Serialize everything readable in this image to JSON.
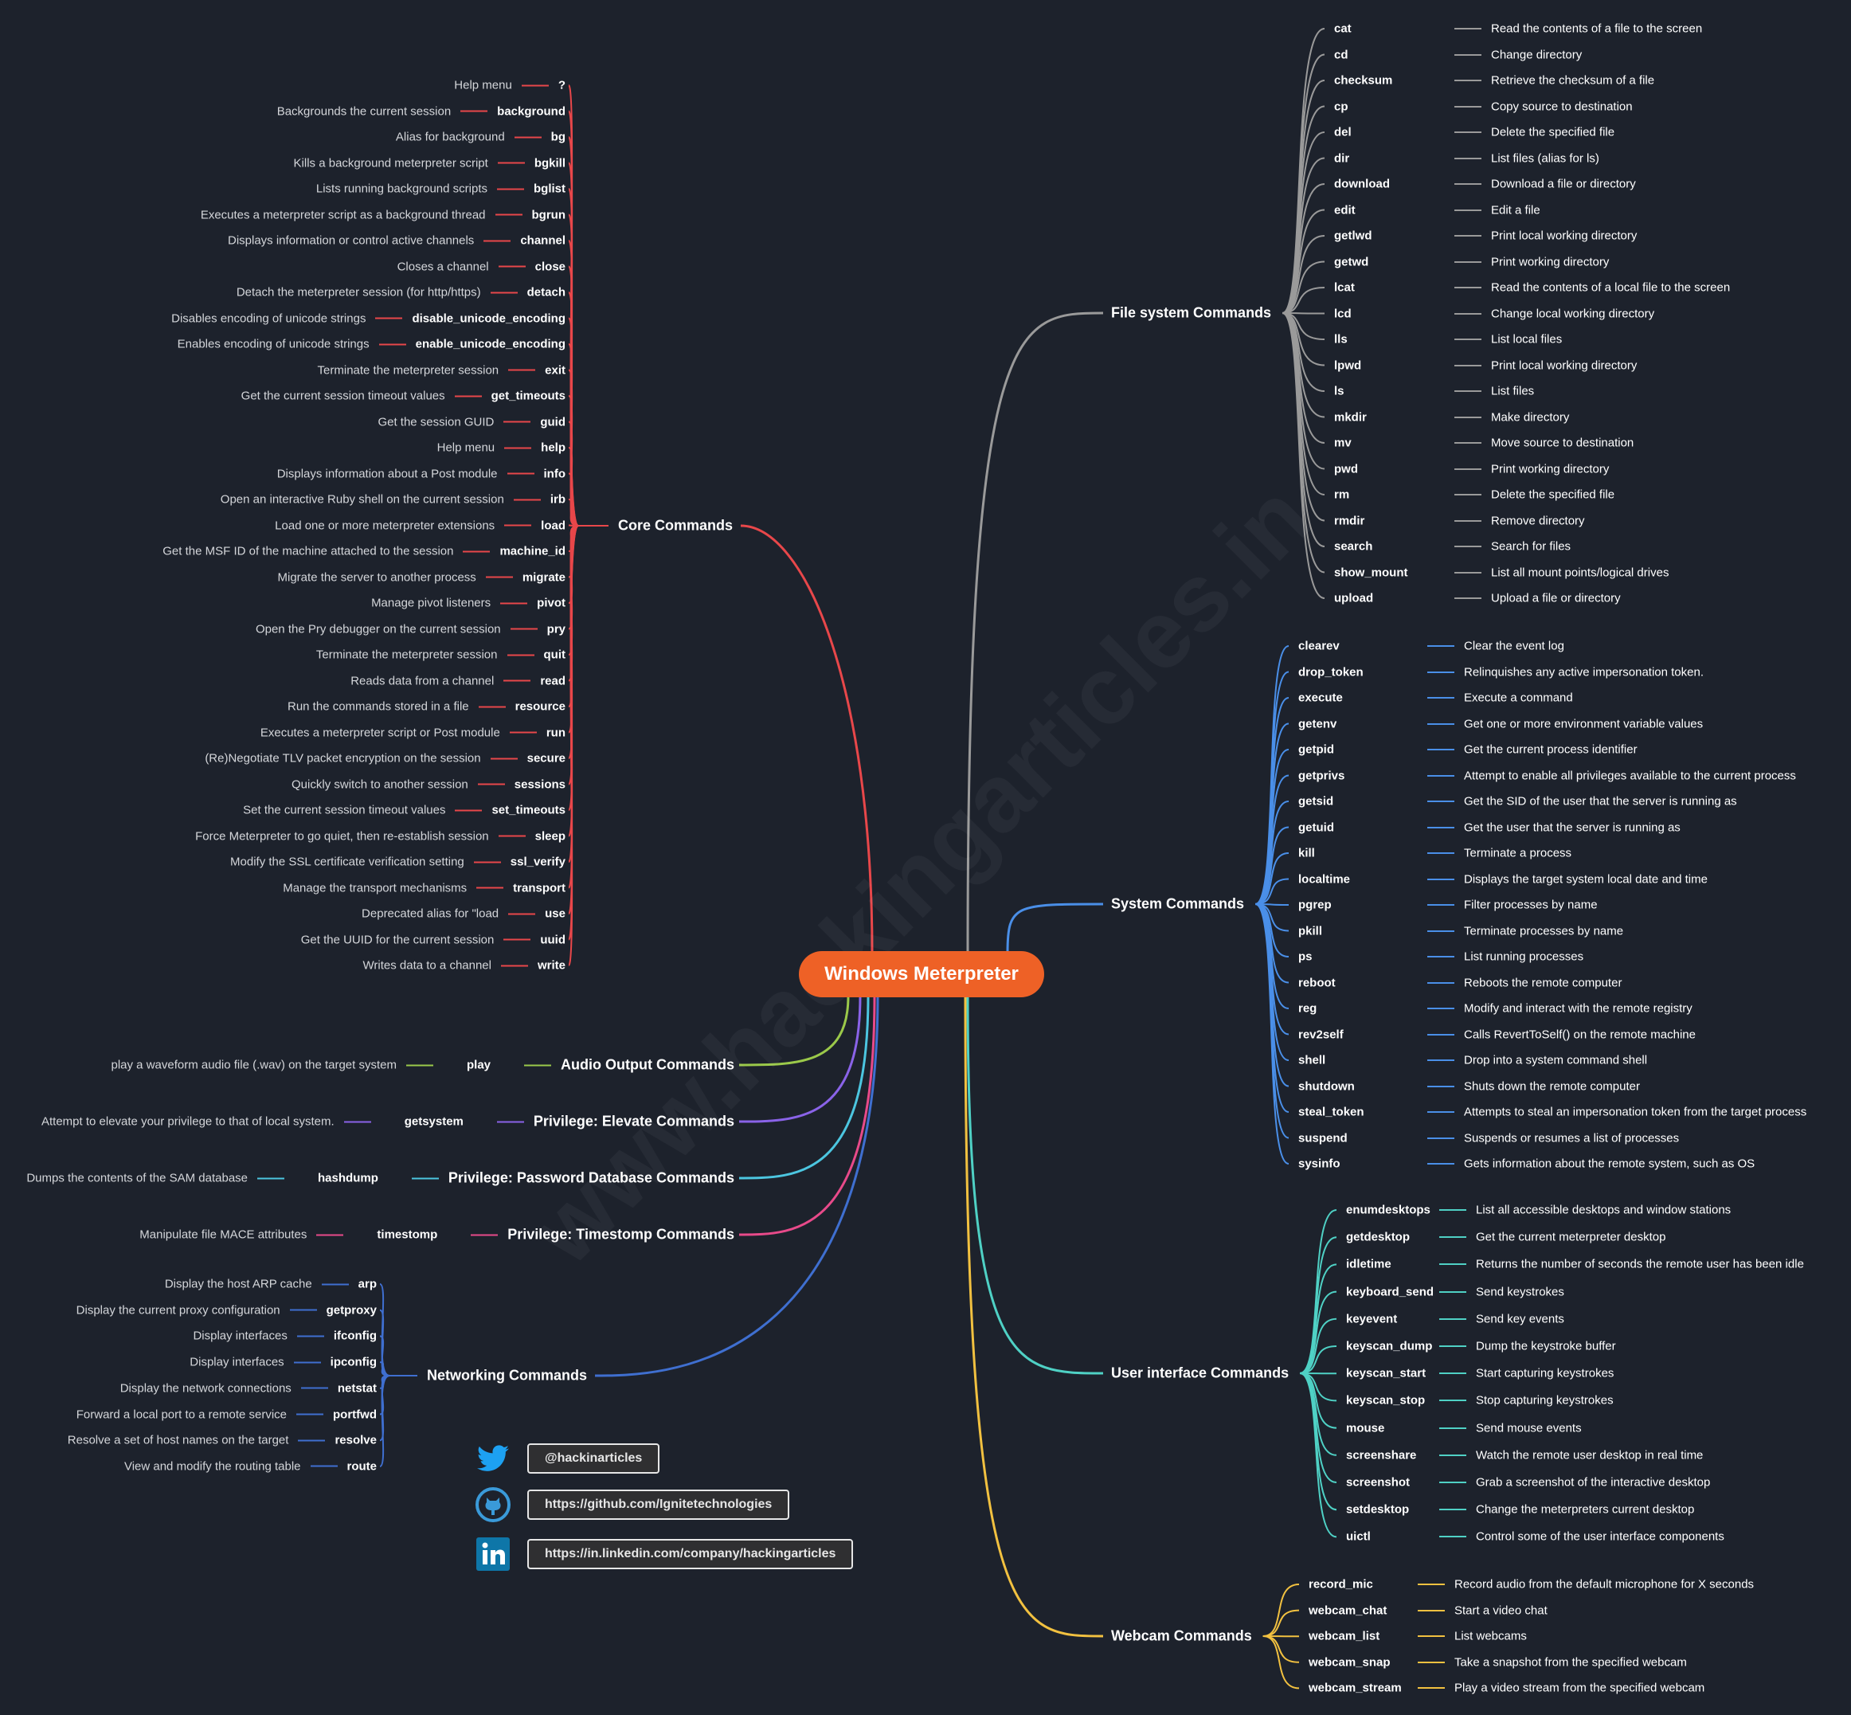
{
  "title": "Windows Meterpreter",
  "watermark": "www.hackingarticles.in",
  "center_color": "#ee6126",
  "branches": [
    {
      "label": "Core Commands",
      "color": "#e8474a",
      "children": [
        {
          "cmd": "?",
          "desc": "Help menu"
        },
        {
          "cmd": "background",
          "desc": "Backgrounds the current session"
        },
        {
          "cmd": "bg",
          "desc": "Alias for background"
        },
        {
          "cmd": "bgkill",
          "desc": "Kills a background meterpreter script"
        },
        {
          "cmd": "bglist",
          "desc": "Lists running background scripts"
        },
        {
          "cmd": "bgrun",
          "desc": "Executes a meterpreter script as a background thread"
        },
        {
          "cmd": "channel",
          "desc": "Displays information or control active channels"
        },
        {
          "cmd": "close",
          "desc": "Closes a channel"
        },
        {
          "cmd": "detach",
          "desc": "Detach the meterpreter session (for http/https)"
        },
        {
          "cmd": "disable_unicode_encoding",
          "desc": "Disables encoding of unicode strings"
        },
        {
          "cmd": "enable_unicode_encoding",
          "desc": "Enables encoding of unicode strings"
        },
        {
          "cmd": "exit",
          "desc": "Terminate the meterpreter session"
        },
        {
          "cmd": "get_timeouts",
          "desc": "Get the current session timeout values"
        },
        {
          "cmd": "guid",
          "desc": "Get the session GUID"
        },
        {
          "cmd": "help",
          "desc": "Help menu"
        },
        {
          "cmd": "info",
          "desc": "Displays information about a Post module"
        },
        {
          "cmd": "irb",
          "desc": "Open an interactive Ruby shell on the current session"
        },
        {
          "cmd": "load",
          "desc": "Load one or more meterpreter extensions"
        },
        {
          "cmd": "machine_id",
          "desc": "Get the MSF ID of the machine attached to the session"
        },
        {
          "cmd": "migrate",
          "desc": "Migrate the server to another process"
        },
        {
          "cmd": "pivot",
          "desc": "Manage pivot listeners"
        },
        {
          "cmd": "pry",
          "desc": "Open the Pry debugger on the current session"
        },
        {
          "cmd": "quit",
          "desc": "Terminate the meterpreter session"
        },
        {
          "cmd": "read",
          "desc": "Reads data from a channel"
        },
        {
          "cmd": "resource",
          "desc": "Run the commands stored in a file"
        },
        {
          "cmd": "run",
          "desc": "Executes a meterpreter script or Post module"
        },
        {
          "cmd": "secure",
          "desc": "(Re)Negotiate TLV packet encryption on the session"
        },
        {
          "cmd": "sessions",
          "desc": "Quickly switch to another session"
        },
        {
          "cmd": "set_timeouts",
          "desc": "Set the current session timeout values"
        },
        {
          "cmd": "sleep",
          "desc": "Force Meterpreter to go quiet, then re-establish session"
        },
        {
          "cmd": "ssl_verify",
          "desc": "Modify the SSL certificate verification setting"
        },
        {
          "cmd": "transport",
          "desc": "Manage the transport mechanisms"
        },
        {
          "cmd": "use",
          "desc": "Deprecated alias for \"load"
        },
        {
          "cmd": "uuid",
          "desc": "Get the UUID for the current session"
        },
        {
          "cmd": "write",
          "desc": "Writes data to a channel"
        }
      ]
    },
    {
      "label": "File system Commands",
      "color": "#9a9a9a",
      "children": [
        {
          "cmd": "cat",
          "desc": "Read the contents of a file to the screen"
        },
        {
          "cmd": "cd",
          "desc": "Change directory"
        },
        {
          "cmd": "checksum",
          "desc": "Retrieve the checksum of a file"
        },
        {
          "cmd": "cp",
          "desc": "Copy source to destination"
        },
        {
          "cmd": "del",
          "desc": "Delete the specified file"
        },
        {
          "cmd": "dir",
          "desc": "List files (alias for ls)"
        },
        {
          "cmd": "download",
          "desc": "Download a file or directory"
        },
        {
          "cmd": "edit",
          "desc": "Edit a file"
        },
        {
          "cmd": "getlwd",
          "desc": "Print local working directory"
        },
        {
          "cmd": "getwd",
          "desc": "Print working directory"
        },
        {
          "cmd": "lcat",
          "desc": "Read the contents of a local file to the screen"
        },
        {
          "cmd": "lcd",
          "desc": "Change local working directory"
        },
        {
          "cmd": "lls",
          "desc": "List local files"
        },
        {
          "cmd": "lpwd",
          "desc": "Print local working directory"
        },
        {
          "cmd": "ls",
          "desc": "List files"
        },
        {
          "cmd": "mkdir",
          "desc": "Make directory"
        },
        {
          "cmd": "mv",
          "desc": "Move source to destination"
        },
        {
          "cmd": "pwd",
          "desc": "Print working directory"
        },
        {
          "cmd": "rm",
          "desc": "Delete the specified file"
        },
        {
          "cmd": "rmdir",
          "desc": "Remove directory"
        },
        {
          "cmd": "search",
          "desc": "Search for files"
        },
        {
          "cmd": "show_mount",
          "desc": "List all mount points/logical drives"
        },
        {
          "cmd": "upload",
          "desc": "Upload a file or directory"
        }
      ]
    },
    {
      "label": "System Commands",
      "color": "#4a8fe8",
      "children": [
        {
          "cmd": "clearev",
          "desc": "Clear the event log"
        },
        {
          "cmd": "drop_token",
          "desc": "Relinquishes any active impersonation token."
        },
        {
          "cmd": "execute",
          "desc": "Execute a command"
        },
        {
          "cmd": "getenv",
          "desc": "Get one or more environment variable values"
        },
        {
          "cmd": "getpid",
          "desc": "Get the current process identifier"
        },
        {
          "cmd": "getprivs",
          "desc": "Attempt to enable all privileges available to the current process"
        },
        {
          "cmd": "getsid",
          "desc": "Get the SID of the user that the server is running as"
        },
        {
          "cmd": "getuid",
          "desc": "Get the user that the server is running as"
        },
        {
          "cmd": "kill",
          "desc": "Terminate a process"
        },
        {
          "cmd": "localtime",
          "desc": "Displays the target system local date and time"
        },
        {
          "cmd": "pgrep",
          "desc": "Filter processes by name"
        },
        {
          "cmd": "pkill",
          "desc": "Terminate processes by name"
        },
        {
          "cmd": "ps",
          "desc": "List running processes"
        },
        {
          "cmd": "reboot",
          "desc": "Reboots the remote computer"
        },
        {
          "cmd": "reg",
          "desc": "Modify and interact with the remote registry"
        },
        {
          "cmd": "rev2self",
          "desc": "Calls RevertToSelf() on the remote machine"
        },
        {
          "cmd": "shell",
          "desc": "Drop into a system command shell"
        },
        {
          "cmd": "shutdown",
          "desc": "Shuts down the remote computer"
        },
        {
          "cmd": "steal_token",
          "desc": "Attempts to steal an impersonation token from the target process"
        },
        {
          "cmd": "suspend",
          "desc": "Suspends or resumes a list of processes"
        },
        {
          "cmd": "sysinfo",
          "desc": "Gets information about the remote system, such as OS"
        }
      ]
    },
    {
      "label": "User interface Commands",
      "color": "#4fd1c5",
      "children": [
        {
          "cmd": "enumdesktops",
          "desc": "List all accessible desktops and window stations"
        },
        {
          "cmd": "getdesktop",
          "desc": "Get the current meterpreter desktop"
        },
        {
          "cmd": "idletime",
          "desc": "Returns the number of seconds the remote user has been idle"
        },
        {
          "cmd": "keyboard_send",
          "desc": "Send keystrokes"
        },
        {
          "cmd": "keyevent",
          "desc": "Send key events"
        },
        {
          "cmd": "keyscan_dump",
          "desc": "Dump the keystroke buffer"
        },
        {
          "cmd": "keyscan_start",
          "desc": "Start capturing keystrokes"
        },
        {
          "cmd": "keyscan_stop",
          "desc": "Stop capturing keystrokes"
        },
        {
          "cmd": "mouse",
          "desc": "Send mouse events"
        },
        {
          "cmd": "screenshare",
          "desc": "Watch the remote user desktop in real time"
        },
        {
          "cmd": "screenshot",
          "desc": "Grab a screenshot of the interactive desktop"
        },
        {
          "cmd": "setdesktop",
          "desc": "Change the meterpreters current desktop"
        },
        {
          "cmd": "uictl",
          "desc": "Control some of the user interface components"
        }
      ]
    },
    {
      "label": "Webcam Commands",
      "color": "#f2c140",
      "children": [
        {
          "cmd": "record_mic",
          "desc": "Record audio from the default microphone for X seconds"
        },
        {
          "cmd": "webcam_chat",
          "desc": "Start a video chat"
        },
        {
          "cmd": "webcam_list",
          "desc": "List webcams"
        },
        {
          "cmd": "webcam_snap",
          "desc": "Take a snapshot from the specified webcam"
        },
        {
          "cmd": "webcam_stream",
          "desc": "Play a video stream from the specified webcam"
        }
      ]
    },
    {
      "label": "Audio Output Commands",
      "color": "#9bc94a",
      "children": [
        {
          "cmd": "play",
          "desc": "play a waveform audio file (.wav) on the target system"
        }
      ]
    },
    {
      "label": "Privilege: Elevate Commands",
      "color": "#8a63e8",
      "children": [
        {
          "cmd": "getsystem",
          "desc": "Attempt to elevate your privilege to that of local system."
        }
      ]
    },
    {
      "label": "Privilege: Password Database Commands",
      "color": "#4cc6e0",
      "children": [
        {
          "cmd": "hashdump",
          "desc": "Dumps the contents of the SAM database"
        }
      ]
    },
    {
      "label": "Privilege: Timestomp Commands",
      "color": "#e84a8a",
      "children": [
        {
          "cmd": "timestomp",
          "desc": "Manipulate file MACE attributes"
        }
      ]
    },
    {
      "label": "Networking Commands",
      "color": "#3f6fd0",
      "children": [
        {
          "cmd": "arp",
          "desc": "Display the host ARP cache"
        },
        {
          "cmd": "getproxy",
          "desc": "Display the current proxy configuration"
        },
        {
          "cmd": "ifconfig",
          "desc": "Display interfaces"
        },
        {
          "cmd": "ipconfig",
          "desc": "Display interfaces"
        },
        {
          "cmd": "netstat",
          "desc": "Display the network connections"
        },
        {
          "cmd": "portfwd",
          "desc": "Forward a local port to a remote service"
        },
        {
          "cmd": "resolve",
          "desc": "Resolve a set of host names on the target"
        },
        {
          "cmd": "route",
          "desc": "View and modify the routing table"
        }
      ]
    }
  ],
  "social": [
    {
      "icon": "twitter-icon",
      "color": "#1da1f2",
      "text": "@hackinarticles"
    },
    {
      "icon": "github-icon",
      "color": "#3a9ad9",
      "text": "https://github.com/Ignitetechnologies"
    },
    {
      "icon": "linkedin-icon",
      "color": "#0e76a8",
      "text": "https://in.linkedin.com/company/hackingarticles"
    }
  ]
}
